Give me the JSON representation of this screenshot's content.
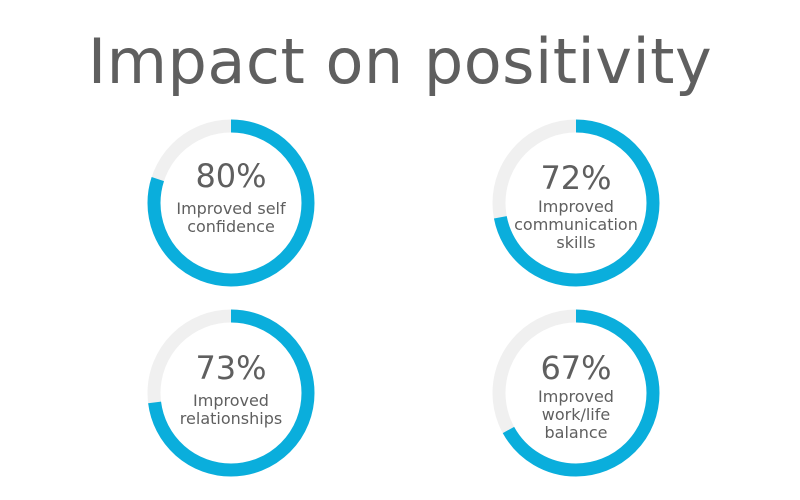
{
  "title": "Impact on positivity",
  "colors": {
    "accent": "#0aaedc",
    "track": "#f0f0f0",
    "text": "#5f5f5f"
  },
  "chart_data": [
    {
      "type": "pie",
      "value": 80,
      "value_label": "80%",
      "label": "Improved self\nconfidence"
    },
    {
      "type": "pie",
      "value": 72,
      "value_label": "72%",
      "label": "Improved\ncommunication\nskills"
    },
    {
      "type": "pie",
      "value": 73,
      "value_label": "73%",
      "label": "Improved\nrelationships"
    },
    {
      "type": "pie",
      "value": 67,
      "value_label": "67%",
      "label": "Improved\nwork/life\nbalance"
    }
  ]
}
